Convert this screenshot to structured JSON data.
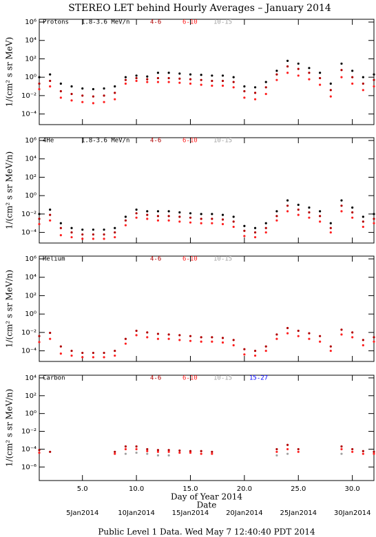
{
  "title": "STEREO LET behind Hourly Averages – January 2014",
  "footer": "Public Level 1 Data. Wed May  7 12:40:40 PDT 2014",
  "chart_data": [
    {
      "type": "line",
      "label": "Protons",
      "ylabel": "1/(cm² s sr MeV)",
      "log_y": true,
      "xlim": [
        1,
        32
      ],
      "xticks": [
        5,
        10,
        15,
        20,
        25,
        30
      ],
      "ylim": [
        7e-06,
        2000000.0
      ],
      "yticks": [
        {
          "value": 1000000.0,
          "label": "10⁶"
        },
        {
          "value": 10000.0,
          "label": "10⁴"
        },
        {
          "value": 100,
          "label": "10²"
        },
        {
          "value": 1,
          "label": "10⁰"
        },
        {
          "value": 0.01,
          "label": "10⁻²"
        },
        {
          "value": 0.0001,
          "label": "10⁻⁴"
        }
      ],
      "x": [
        1,
        2,
        3,
        4,
        5,
        6,
        7,
        8,
        9,
        10,
        11,
        12,
        13,
        14,
        15,
        16,
        17,
        18,
        19,
        20,
        21,
        22,
        23,
        24,
        25,
        26,
        27,
        28,
        29,
        30,
        31,
        32
      ],
      "series": [
        {
          "name": "1.8-3.6 MeV/n",
          "color": "#000000",
          "values": [
            1,
            2,
            0.2,
            0.1,
            0.06,
            0.05,
            0.06,
            0.1,
            1,
            1.5,
            1.2,
            3,
            3,
            2.5,
            2,
            1.8,
            1.5,
            1.5,
            1,
            0.1,
            0.08,
            0.3,
            5,
            60,
            30,
            10,
            3,
            0.2,
            30,
            5,
            1,
            2
          ]
        },
        {
          "name": "4-6",
          "color": "#b00000",
          "values": [
            0.2,
            0.4,
            0.03,
            0.015,
            0.01,
            0.008,
            0.01,
            0.02,
            0.5,
            0.8,
            0.6,
            0.8,
            0.8,
            0.7,
            0.6,
            0.5,
            0.4,
            0.4,
            0.3,
            0.03,
            0.02,
            0.08,
            2,
            15,
            8,
            3,
            0.8,
            0.04,
            6,
            1,
            0.2,
            0.5
          ]
        },
        {
          "name": "6-10",
          "color": "#ff2020",
          "values": [
            0.05,
            0.1,
            0.006,
            0.003,
            0.002,
            0.0015,
            0.002,
            0.004,
            0.2,
            0.4,
            0.3,
            0.3,
            0.3,
            0.25,
            0.2,
            0.15,
            0.12,
            0.12,
            0.08,
            0.006,
            0.004,
            0.015,
            0.5,
            3,
            1.5,
            0.6,
            0.15,
            0.008,
            1,
            0.2,
            0.04,
            0.1
          ]
        },
        {
          "name": "10-15",
          "color": "#a0a0a0",
          "values": [
            null,
            null,
            null,
            null,
            null,
            null,
            null,
            null,
            null,
            null,
            null,
            null,
            null,
            null,
            null,
            null,
            null,
            null,
            null,
            null,
            null,
            null,
            null,
            null,
            null,
            null,
            null,
            null,
            null,
            null,
            null,
            null
          ]
        }
      ]
    },
    {
      "type": "line",
      "label": "4He",
      "ylabel": "1/(cm² s sr MeV/n)",
      "log_y": true,
      "xlim": [
        1,
        32
      ],
      "xticks": [
        5,
        10,
        15,
        20,
        25,
        30
      ],
      "ylim": [
        7e-06,
        2000000.0
      ],
      "yticks": [
        {
          "value": 1000000.0,
          "label": "10⁶"
        },
        {
          "value": 10000.0,
          "label": "10⁴"
        },
        {
          "value": 100,
          "label": "10²"
        },
        {
          "value": 1,
          "label": "10⁰"
        },
        {
          "value": 0.01,
          "label": "10⁻²"
        },
        {
          "value": 0.0001,
          "label": "10⁻⁴"
        }
      ],
      "x": [
        1,
        2,
        3,
        4,
        5,
        6,
        7,
        8,
        9,
        10,
        11,
        12,
        13,
        14,
        15,
        16,
        17,
        18,
        19,
        20,
        21,
        22,
        23,
        24,
        25,
        26,
        27,
        28,
        29,
        30,
        31,
        32
      ],
      "series": [
        {
          "name": "1.8-3.6 MeV/n",
          "color": "#000000",
          "values": [
            0.01,
            0.03,
            0.001,
            0.0003,
            0.0002,
            0.0002,
            0.0002,
            0.0003,
            0.005,
            0.03,
            0.02,
            0.02,
            0.02,
            0.015,
            0.012,
            0.01,
            0.01,
            0.008,
            0.005,
            0.0005,
            0.0003,
            0.001,
            0.02,
            0.3,
            0.1,
            0.05,
            0.02,
            0.001,
            0.3,
            0.05,
            0.005,
            0.01
          ]
        },
        {
          "name": "4-6",
          "color": "#b00000",
          "values": [
            0.003,
            0.008,
            0.0003,
            0.0001,
            6e-05,
            6e-05,
            6e-05,
            0.0001,
            0.002,
            0.012,
            0.008,
            0.006,
            0.006,
            0.005,
            0.004,
            0.003,
            0.003,
            0.0025,
            0.0015,
            0.00015,
            0.0001,
            0.0003,
            0.006,
            0.08,
            0.03,
            0.015,
            0.006,
            0.0003,
            0.08,
            0.015,
            0.0015,
            0.003
          ]
        },
        {
          "name": "6-10",
          "color": "#ff2020",
          "values": [
            0.0008,
            0.002,
            5e-05,
            3e-05,
            2e-05,
            2e-05,
            2e-05,
            3e-05,
            0.0006,
            0.004,
            0.003,
            0.002,
            0.002,
            0.0015,
            0.0012,
            0.001,
            0.001,
            0.0008,
            0.0004,
            4e-05,
            3e-05,
            0.0001,
            0.002,
            0.02,
            0.008,
            0.004,
            0.0015,
            0.0001,
            0.02,
            0.004,
            0.0004,
            0.001
          ]
        },
        {
          "name": "10-15",
          "color": "#a0a0a0",
          "values": [
            null,
            null,
            null,
            null,
            null,
            null,
            null,
            null,
            null,
            null,
            null,
            null,
            null,
            null,
            null,
            null,
            null,
            null,
            null,
            null,
            null,
            null,
            null,
            null,
            null,
            null,
            null,
            null,
            null,
            null,
            null,
            null
          ]
        }
      ]
    },
    {
      "type": "line",
      "label": "Helium",
      "ylabel": "1/(cm² s sr MeV/n)",
      "log_y": true,
      "xlim": [
        1,
        32
      ],
      "xticks": [
        5,
        10,
        15,
        20,
        25,
        30
      ],
      "ylim": [
        7e-06,
        2000000.0
      ],
      "yticks": [
        {
          "value": 1000000.0,
          "label": "10⁶"
        },
        {
          "value": 10000.0,
          "label": "10⁴"
        },
        {
          "value": 100,
          "label": "10²"
        },
        {
          "value": 1,
          "label": "10⁰"
        },
        {
          "value": 0.01,
          "label": "10⁻²"
        },
        {
          "value": 0.0001,
          "label": "10⁻⁴"
        }
      ],
      "x": [
        1,
        2,
        3,
        4,
        5,
        6,
        7,
        8,
        9,
        10,
        11,
        12,
        13,
        14,
        15,
        16,
        17,
        18,
        19,
        20,
        21,
        22,
        23,
        24,
        25,
        26,
        27,
        28,
        29,
        30,
        31,
        32
      ],
      "series": [
        {
          "name": "4-6",
          "color": "#b00000",
          "values": [
            0.004,
            0.009,
            0.0003,
            0.0001,
            6e-05,
            6e-05,
            6e-05,
            0.0001,
            0.002,
            0.015,
            0.01,
            0.007,
            0.006,
            0.005,
            0.004,
            0.003,
            0.003,
            0.0025,
            0.0015,
            0.00015,
            0.0001,
            0.0003,
            0.006,
            0.03,
            0.015,
            0.008,
            0.004,
            0.0003,
            0.02,
            0.01,
            0.0015,
            0.003
          ]
        },
        {
          "name": "6-10",
          "color": "#ff2020",
          "values": [
            0.0009,
            0.002,
            5e-05,
            3e-05,
            2e-05,
            2e-05,
            2e-05,
            3e-05,
            0.0006,
            0.005,
            0.003,
            0.002,
            0.002,
            0.0015,
            0.0012,
            0.001,
            0.001,
            0.0008,
            0.0004,
            4e-05,
            3e-05,
            0.0001,
            0.002,
            0.008,
            0.004,
            0.002,
            0.001,
            0.0001,
            0.006,
            0.003,
            0.0004,
            0.001
          ]
        },
        {
          "name": "10-15",
          "color": "#a0a0a0",
          "values": [
            null,
            null,
            null,
            null,
            null,
            null,
            null,
            null,
            null,
            null,
            null,
            null,
            null,
            null,
            null,
            null,
            null,
            null,
            null,
            null,
            null,
            null,
            null,
            null,
            null,
            null,
            null,
            null,
            null,
            null,
            null,
            null
          ]
        }
      ]
    },
    {
      "type": "line",
      "label": "Carbon",
      "ylabel": "1/(cm² s sr MeV/n)",
      "log_y": true,
      "xlabel": "Day of Year 2014",
      "x2label": "Date",
      "xlim": [
        1,
        32
      ],
      "xticks": [
        {
          "value": 5,
          "label": "5.0"
        },
        {
          "value": 10,
          "label": "10.0"
        },
        {
          "value": 15,
          "label": "15.0"
        },
        {
          "value": 20,
          "label": "20.0"
        },
        {
          "value": 25,
          "label": "25.0"
        },
        {
          "value": 30,
          "label": "30.0"
        }
      ],
      "x2ticks": [
        {
          "value": 5,
          "label": "5Jan2014"
        },
        {
          "value": 10,
          "label": "10Jan2014"
        },
        {
          "value": 15,
          "label": "15Jan2014"
        },
        {
          "value": 20,
          "label": "20Jan2014"
        },
        {
          "value": 25,
          "label": "25Jan2014"
        },
        {
          "value": 30,
          "label": "30Jan2014"
        }
      ],
      "ylim": [
        3e-08,
        20000.0
      ],
      "yticks": [
        {
          "value": 10000.0,
          "label": "10⁴"
        },
        {
          "value": 100,
          "label": "10²"
        },
        {
          "value": 1,
          "label": "10⁰"
        },
        {
          "value": 0.01,
          "label": "10⁻²"
        },
        {
          "value": 0.0001,
          "label": "10⁻⁴"
        },
        {
          "value": 1e-06,
          "label": "10⁻⁶"
        }
      ],
      "x": [
        1,
        2,
        3,
        4,
        5,
        6,
        7,
        8,
        9,
        10,
        11,
        12,
        13,
        14,
        15,
        16,
        17,
        18,
        19,
        20,
        21,
        22,
        23,
        24,
        25,
        26,
        27,
        28,
        29,
        30,
        31,
        32
      ],
      "series": [
        {
          "name": "4-6",
          "color": "#b00000",
          "values": [
            8e-05,
            5e-05,
            null,
            null,
            null,
            null,
            null,
            5e-05,
            0.0002,
            0.0002,
            0.0001,
            8e-05,
            8e-05,
            7e-05,
            6e-05,
            6e-05,
            5e-05,
            null,
            null,
            null,
            null,
            null,
            0.0001,
            0.0003,
            0.0001,
            null,
            null,
            null,
            0.0002,
            0.0001,
            6e-05,
            5e-05
          ]
        },
        {
          "name": "6-10",
          "color": "#ff2020",
          "values": [
            4e-05,
            null,
            null,
            null,
            null,
            null,
            null,
            3e-05,
            0.0001,
            0.0001,
            6e-05,
            5e-05,
            5e-05,
            4e-05,
            4e-05,
            3e-05,
            3e-05,
            null,
            null,
            null,
            null,
            null,
            5e-05,
            0.0001,
            5e-05,
            null,
            null,
            null,
            0.0001,
            5e-05,
            3e-05,
            3e-05
          ]
        },
        {
          "name": "10-15",
          "color": "#a0a0a0",
          "values": [
            null,
            null,
            null,
            null,
            null,
            null,
            null,
            null,
            3e-05,
            4e-05,
            3e-05,
            2e-05,
            2e-05,
            null,
            null,
            null,
            null,
            null,
            null,
            null,
            null,
            null,
            2e-05,
            3e-05,
            null,
            null,
            null,
            null,
            3e-05,
            null,
            null,
            null
          ]
        },
        {
          "name": "15-27",
          "color": "#0000ff",
          "values": [
            null,
            null,
            null,
            null,
            null,
            null,
            null,
            null,
            null,
            null,
            null,
            null,
            null,
            null,
            null,
            null,
            null,
            null,
            null,
            null,
            null,
            null,
            null,
            null,
            null,
            null,
            null,
            null,
            null,
            null,
            null,
            null
          ]
        }
      ]
    }
  ]
}
